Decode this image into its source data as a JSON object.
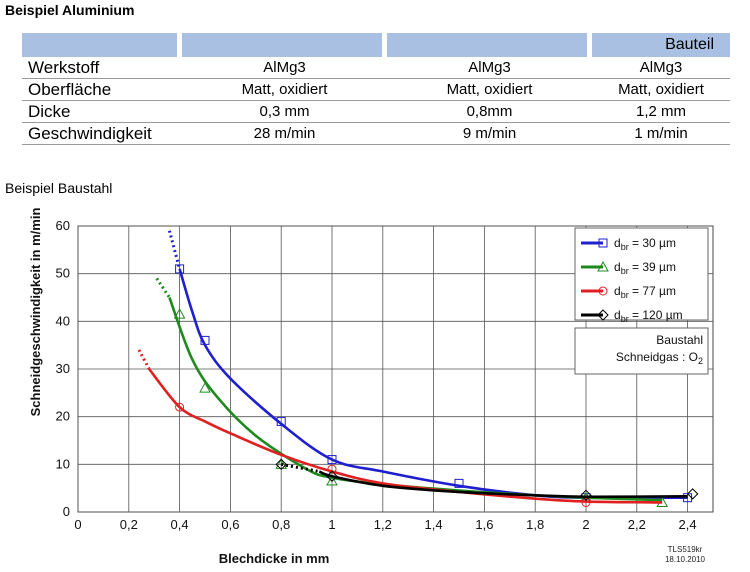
{
  "heading_aluminium": "Beispiel Aluminium",
  "heading_baustahl": "Beispiel Baustahl",
  "table": {
    "header": [
      "",
      "",
      "",
      "Bauteil"
    ],
    "rows": [
      {
        "label": "Werkstoff",
        "values": [
          "AlMg3",
          "AlMg3",
          "AlMg3"
        ]
      },
      {
        "label": "Oberfläche",
        "values": [
          "Matt, oxidiert",
          "Matt, oxidiert",
          "Matt, oxidiert"
        ]
      },
      {
        "label": "Dicke",
        "values": [
          "0,3 mm",
          "0,8mm",
          "1,2 mm"
        ]
      },
      {
        "label": "Geschwindigkeit",
        "values": [
          "28 m/min",
          "9 m/min",
          "1 m/min"
        ]
      }
    ],
    "header_color": "#a9c0e2"
  },
  "chart_data": {
    "type": "line",
    "xlabel": "Blechdicke in mm",
    "ylabel": "Schneidgeschwindigkeit  in m/min",
    "xlim": [
      0,
      2.5
    ],
    "ylim": [
      0,
      60
    ],
    "xticks": [
      "0",
      "0,2",
      "0,4",
      "0,6",
      "0,8",
      "1",
      "1,2",
      "1,4",
      "1,6",
      "1,8",
      "2",
      "2,2",
      "2,4"
    ],
    "yticks": [
      "0",
      "10",
      "20",
      "30",
      "40",
      "50",
      "60"
    ],
    "grid": true,
    "legend_position": "top-right",
    "series": [
      {
        "name": "dbr = 30 µm",
        "color": "#1f1fd0",
        "marker": "square",
        "dotted": [
          [
            0.36,
            59
          ],
          [
            0.4,
            51
          ]
        ],
        "curve": [
          [
            0.4,
            51
          ],
          [
            0.45,
            42
          ],
          [
            0.5,
            35
          ],
          [
            0.6,
            28
          ],
          [
            0.8,
            18.5
          ],
          [
            1.0,
            11
          ],
          [
            1.2,
            8.5
          ],
          [
            1.5,
            5.5
          ],
          [
            1.8,
            3.5
          ],
          [
            2.0,
            3
          ],
          [
            2.4,
            3
          ]
        ],
        "markers": [
          [
            0.4,
            51
          ],
          [
            0.5,
            36
          ],
          [
            0.8,
            19
          ],
          [
            1.0,
            11
          ],
          [
            1.5,
            6
          ],
          [
            2.0,
            3
          ],
          [
            2.4,
            3
          ]
        ]
      },
      {
        "name": "dbr = 39 µm",
        "color": "#1e8a1e",
        "marker": "triangle",
        "dotted": [
          [
            0.31,
            49
          ],
          [
            0.36,
            45
          ]
        ],
        "curve": [
          [
            0.36,
            45
          ],
          [
            0.45,
            32
          ],
          [
            0.55,
            24
          ],
          [
            0.7,
            16
          ],
          [
            0.9,
            9
          ],
          [
            1.0,
            7.2
          ],
          [
            1.2,
            5.8
          ],
          [
            1.5,
            4.5
          ],
          [
            1.8,
            3.5
          ],
          [
            2.0,
            3
          ],
          [
            2.3,
            2.5
          ]
        ],
        "markers": [
          [
            0.4,
            41.5
          ],
          [
            0.5,
            26
          ],
          [
            0.8,
            10
          ],
          [
            1.0,
            6.5
          ],
          [
            2.0,
            3
          ],
          [
            2.3,
            2
          ]
        ]
      },
      {
        "name": "dbr = 77 µm",
        "color": "#e02020",
        "marker": "circle",
        "dotted": [
          [
            0.24,
            34
          ],
          [
            0.28,
            30
          ]
        ],
        "curve": [
          [
            0.28,
            30
          ],
          [
            0.4,
            22
          ],
          [
            0.5,
            19
          ],
          [
            0.6,
            16.5
          ],
          [
            0.8,
            12
          ],
          [
            1.0,
            8.5
          ],
          [
            1.2,
            6
          ],
          [
            1.5,
            4.2
          ],
          [
            1.8,
            2.8
          ],
          [
            2.0,
            2.2
          ],
          [
            2.3,
            2
          ]
        ],
        "markers": [
          [
            0.4,
            22
          ],
          [
            1.0,
            9
          ],
          [
            2.0,
            2
          ]
        ]
      },
      {
        "name": "dbr = 120 µm",
        "color": "#000000",
        "marker": "diamond",
        "dotted": [
          [
            0.8,
            10
          ],
          [
            0.95,
            8.5
          ]
        ],
        "curve": [
          [
            0.95,
            8.5
          ],
          [
            1.0,
            7.5
          ],
          [
            1.2,
            5.5
          ],
          [
            1.5,
            4.2
          ],
          [
            1.8,
            3.5
          ],
          [
            2.0,
            3.2
          ],
          [
            2.4,
            3.3
          ]
        ],
        "markers": [
          [
            0.8,
            10
          ],
          [
            1.0,
            7.5
          ],
          [
            2.0,
            3.5
          ],
          [
            2.42,
            3.8
          ]
        ]
      }
    ],
    "annotation": {
      "line1": "Baustahl",
      "line2_prefix": "Schneidgas : O",
      "line2_sub": "2"
    },
    "stamp": {
      "line1": "TLS519kr",
      "line2": "18.10.2010"
    }
  }
}
